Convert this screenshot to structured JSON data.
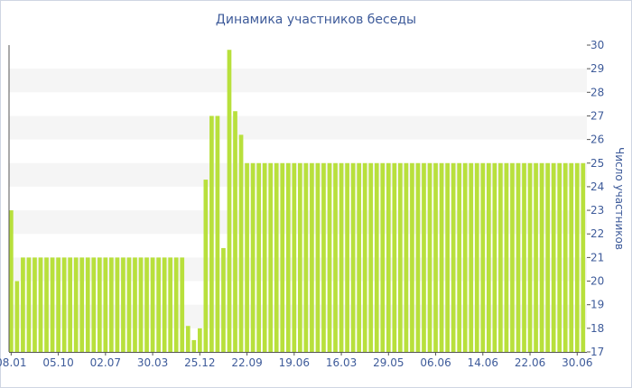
{
  "chart_data": {
    "type": "bar",
    "title": "Динамика участников беседы",
    "xlabel": "",
    "ylabel": "Число участников",
    "ylim": [
      17,
      30
    ],
    "yticks": [
      17,
      18,
      19,
      20,
      21,
      22,
      23,
      24,
      25,
      26,
      27,
      28,
      29,
      30
    ],
    "grid": "alternating-bands",
    "x_tick_labels": [
      "08.01",
      "05.10",
      "02.07",
      "30.03",
      "25.12",
      "22.09",
      "19.06",
      "16.03",
      "29.05",
      "06.06",
      "14.06",
      "22.06",
      "30.06"
    ],
    "x_tick_label_positions": [
      0,
      8,
      16,
      24,
      32,
      40,
      48,
      56,
      64,
      72,
      80,
      88,
      96
    ],
    "values": [
      23,
      20,
      21,
      21,
      21,
      21,
      21,
      21,
      21,
      21,
      21,
      21,
      21,
      21,
      21,
      21,
      21,
      21,
      21,
      21,
      21,
      21,
      21,
      21,
      21,
      21,
      21,
      21,
      21,
      21,
      18.1,
      17.5,
      18,
      24.3,
      27,
      27,
      21.4,
      29.8,
      27.2,
      26.2,
      25,
      25,
      25,
      25,
      25,
      25,
      25,
      25,
      25,
      25,
      25,
      25,
      25,
      25,
      25,
      25,
      25,
      25,
      25,
      25,
      25,
      25,
      25,
      25,
      25,
      25,
      25,
      25,
      25,
      25,
      25,
      25,
      25,
      25,
      25,
      25,
      25,
      25,
      25,
      25,
      25,
      25,
      25,
      25,
      25,
      25,
      25,
      25,
      25,
      25,
      25,
      25,
      25,
      25,
      25,
      25,
      25,
      25
    ],
    "colors": {
      "bar": "#b8e03c",
      "axis_text": "#3e5b9a",
      "band": "#f5f5f5",
      "axis_line": "#555555"
    }
  }
}
